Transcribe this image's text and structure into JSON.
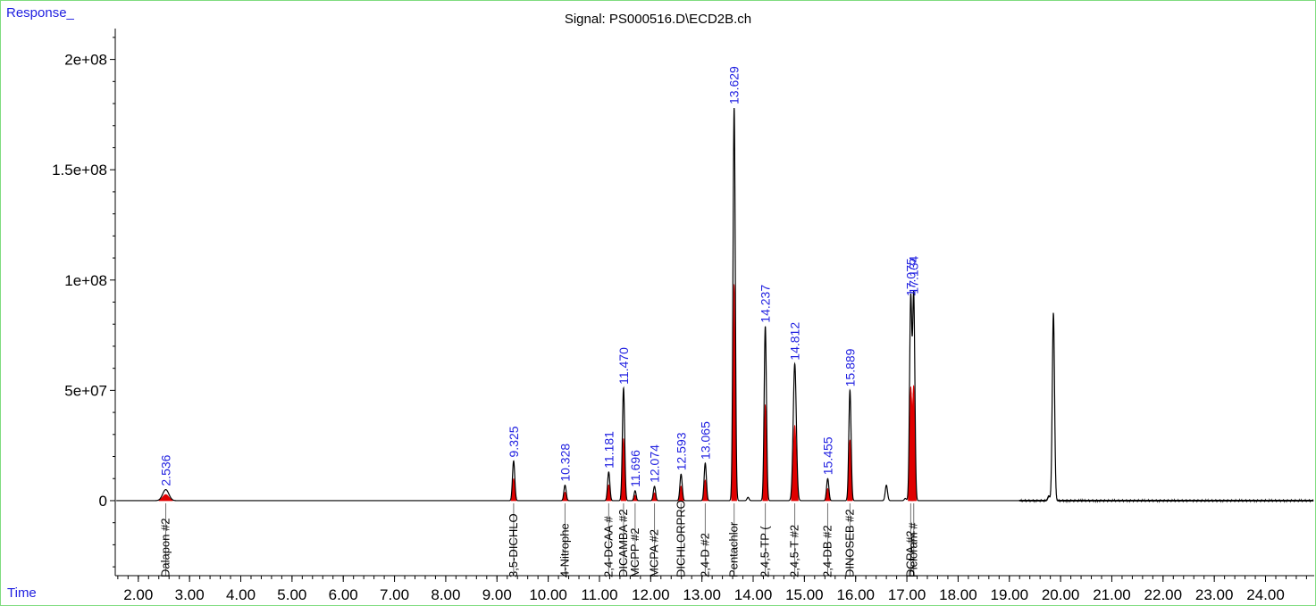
{
  "window": {
    "signal_title": "Signal: PS000516.D\\ECD2B.ch",
    "y_corner_label": "Response_",
    "x_corner_label": "Time"
  },
  "colors": {
    "trace": "#000000",
    "baseline_fill": "#e00000",
    "rt_label": "#1f1fe0",
    "frame": "#7fdc7f"
  },
  "chart_data": {
    "type": "line",
    "title": "Signal: PS000516.D\\ECD2B.ch",
    "xlabel": "Time",
    "ylabel": "Response_",
    "xlim": [
      1.55,
      24.95
    ],
    "ylim": [
      -34000000,
      214000000
    ],
    "x_ticks": [
      2.0,
      3.0,
      4.0,
      5.0,
      6.0,
      7.0,
      8.0,
      9.0,
      10.0,
      11.0,
      12.0,
      13.0,
      14.0,
      15.0,
      16.0,
      17.0,
      18.0,
      19.0,
      20.0,
      21.0,
      22.0,
      23.0,
      24.0
    ],
    "x_tick_labels": [
      "2.00",
      "3.00",
      "4.00",
      "5.00",
      "6.00",
      "7.00",
      "8.00",
      "9.00",
      "10.00",
      "11.00",
      "12.00",
      "13.00",
      "14.00",
      "15.00",
      "16.00",
      "17.00",
      "18.00",
      "19.00",
      "20.00",
      "21.00",
      "22.00",
      "23.00",
      "24.00"
    ],
    "y_ticks": [
      0,
      50000000,
      100000000,
      150000000,
      200000000
    ],
    "y_tick_labels": [
      "0",
      "5e+07",
      "1e+08",
      "1.5e+08",
      "2e+08"
    ],
    "grid": false,
    "peaks": [
      {
        "rt": 2.536,
        "label": "2.536",
        "height": 5000000,
        "width": 0.06,
        "compound": "Dalapon #2"
      },
      {
        "rt": 9.325,
        "label": "9.325",
        "height": 18000000,
        "width": 0.022,
        "compound": "3,5-DICHLO"
      },
      {
        "rt": 10.328,
        "label": "10.328",
        "height": 7000000,
        "width": 0.022,
        "compound": "4-Nitrophe"
      },
      {
        "rt": 11.181,
        "label": "11.181",
        "height": 13000000,
        "width": 0.022,
        "compound": "2,4-DCAA #"
      },
      {
        "rt": 11.47,
        "label": "11.470",
        "height": 51000000,
        "width": 0.022,
        "compound": "DICAMBA #2"
      },
      {
        "rt": 11.696,
        "label": "11.696",
        "height": 4500000,
        "width": 0.02,
        "compound": "MCPP #2"
      },
      {
        "rt": 12.074,
        "label": "12.074",
        "height": 6500000,
        "width": 0.022,
        "compound": "MCPA #2"
      },
      {
        "rt": 12.593,
        "label": "12.593",
        "height": 12000000,
        "width": 0.022,
        "compound": "DICHLORPRO"
      },
      {
        "rt": 13.065,
        "label": "13.065",
        "height": 17000000,
        "width": 0.022,
        "compound": "2,4-D #2"
      },
      {
        "rt": 13.629,
        "label": "13.629",
        "height": 178000000,
        "width": 0.022,
        "compound": "Pentachlor"
      },
      {
        "rt": 14.237,
        "label": "14.237",
        "height": 79000000,
        "width": 0.022,
        "compound": "2,4,5-TP ("
      },
      {
        "rt": 14.812,
        "label": "14.812",
        "height": 62000000,
        "width": 0.03,
        "compound": "2,4,5-T #2"
      },
      {
        "rt": 15.455,
        "label": "15.455",
        "height": 10000000,
        "width": 0.022,
        "compound": "2,4-DB #2"
      },
      {
        "rt": 15.889,
        "label": "15.889",
        "height": 50000000,
        "width": 0.022,
        "compound": "DINOSEB #2"
      },
      {
        "rt": 17.075,
        "label": "17.075",
        "height": 91000000,
        "width": 0.022,
        "compound": "DCPA #2"
      },
      {
        "rt": 17.134,
        "label": "17.134",
        "height": 92000000,
        "width": 0.022,
        "compound": "Picloram #"
      }
    ],
    "unlabeled_peaks": [
      {
        "rt": 13.9,
        "height": 1500000,
        "width": 0.02
      },
      {
        "rt": 16.6,
        "height": 7000000,
        "width": 0.022
      },
      {
        "rt": 16.97,
        "height": 1000000,
        "width": 0.02
      },
      {
        "rt": 19.77,
        "height": 2000000,
        "width": 0.02
      },
      {
        "rt": 19.86,
        "height": 85000000,
        "width": 0.022
      }
    ]
  }
}
